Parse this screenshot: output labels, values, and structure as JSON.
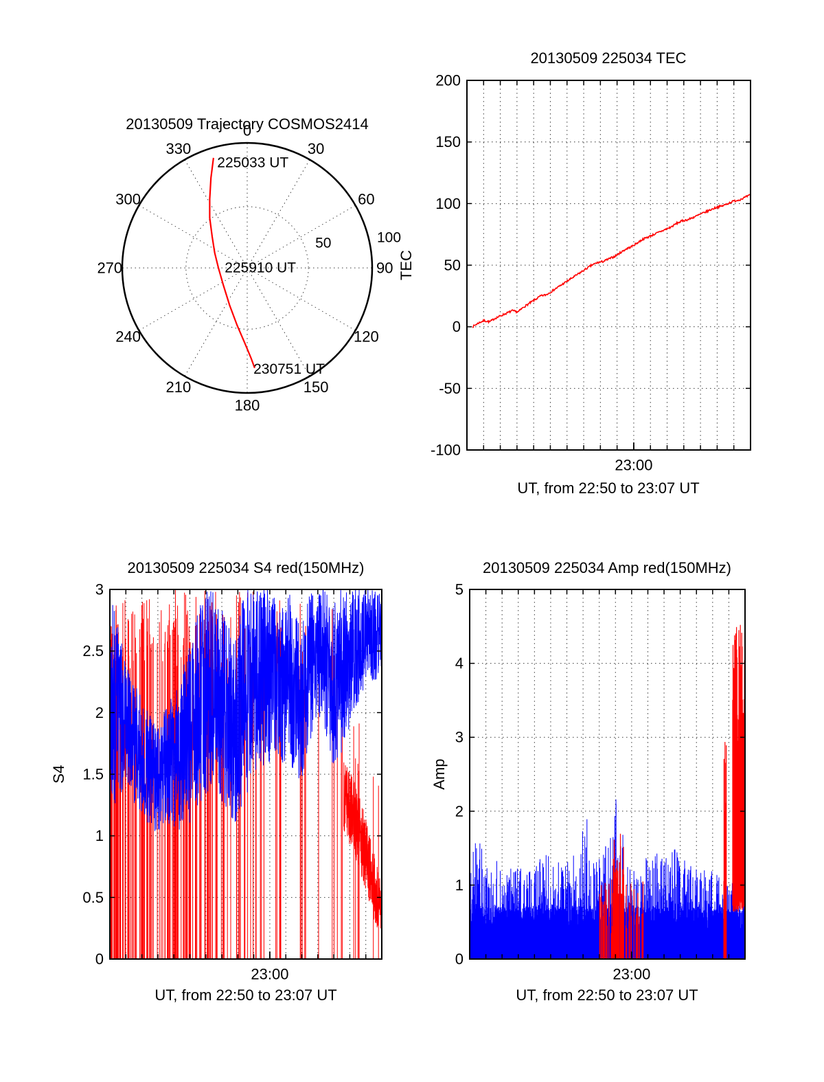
{
  "figure": {
    "background": "#ffffff"
  },
  "chart_data": {
    "trajectory": {
      "type": "polar-track",
      "title": "20130509 Trajectory COSMOS2414",
      "azimuth_tick_labels": [
        "0",
        "30",
        "60",
        "90",
        "120",
        "150",
        "180",
        "210",
        "240",
        "270",
        "300",
        "330"
      ],
      "radial_tick_labels": [
        {
          "label": "50",
          "az_deg": 72,
          "r": 0.64
        },
        {
          "label": "100",
          "az_deg": 78,
          "r": 1.16
        }
      ],
      "track_color": "#ff0000",
      "track_points_unit": [
        [
          -0.27,
          0.88
        ],
        [
          -0.29,
          0.72
        ],
        [
          -0.3,
          0.55
        ],
        [
          -0.3,
          0.4
        ],
        [
          -0.28,
          0.25
        ],
        [
          -0.26,
          0.12
        ],
        [
          -0.23,
          0.0
        ],
        [
          -0.19,
          -0.14
        ],
        [
          -0.14,
          -0.3
        ],
        [
          -0.08,
          -0.46
        ],
        [
          -0.02,
          -0.6
        ],
        [
          0.03,
          -0.72
        ],
        [
          0.06,
          -0.8
        ]
      ],
      "annotations": [
        {
          "label": "225033 UT",
          "x": -0.24,
          "y": 0.84
        },
        {
          "label": "225910 UT",
          "x": -0.18,
          "y": 0.0
        },
        {
          "label": "230751 UT",
          "x": 0.05,
          "y": -0.81
        }
      ]
    },
    "tec": {
      "type": "line",
      "title": "20130509 225034 TEC",
      "xlabel": "UT, from 22:50 to 23:07 UT",
      "ylabel": "TEC",
      "x_start": "22:50",
      "x_end": "23:07",
      "x_minutes": 17,
      "xticks": [
        {
          "pos": 0.5882,
          "label": "23:00"
        }
      ],
      "ylim": [
        -100,
        200
      ],
      "yticks": [
        -100,
        -50,
        0,
        50,
        100,
        150,
        200
      ],
      "line_color": "#ff0000",
      "points": [
        [
          0.02,
          0
        ],
        [
          0.04,
          3
        ],
        [
          0.06,
          5
        ],
        [
          0.08,
          4
        ],
        [
          0.1,
          7
        ],
        [
          0.12,
          9
        ],
        [
          0.14,
          11
        ],
        [
          0.16,
          13
        ],
        [
          0.18,
          12
        ],
        [
          0.2,
          16
        ],
        [
          0.22,
          19
        ],
        [
          0.24,
          22
        ],
        [
          0.26,
          25
        ],
        [
          0.28,
          26
        ],
        [
          0.3,
          29
        ],
        [
          0.32,
          32
        ],
        [
          0.34,
          35
        ],
        [
          0.36,
          38
        ],
        [
          0.38,
          41
        ],
        [
          0.4,
          44
        ],
        [
          0.42,
          47
        ],
        [
          0.44,
          50
        ],
        [
          0.46,
          52
        ],
        [
          0.48,
          53
        ],
        [
          0.5,
          55
        ],
        [
          0.52,
          57
        ],
        [
          0.54,
          60
        ],
        [
          0.56,
          63
        ],
        [
          0.58,
          65
        ],
        [
          0.6,
          68
        ],
        [
          0.62,
          71
        ],
        [
          0.64,
          73
        ],
        [
          0.66,
          75
        ],
        [
          0.68,
          77
        ],
        [
          0.7,
          79
        ],
        [
          0.72,
          81
        ],
        [
          0.74,
          84
        ],
        [
          0.76,
          86
        ],
        [
          0.78,
          87
        ],
        [
          0.8,
          89
        ],
        [
          0.82,
          91
        ],
        [
          0.84,
          93
        ],
        [
          0.86,
          95
        ],
        [
          0.88,
          97
        ],
        [
          0.9,
          98
        ],
        [
          0.92,
          100
        ],
        [
          0.94,
          102
        ],
        [
          0.96,
          103
        ],
        [
          0.98,
          105
        ],
        [
          1.0,
          107
        ]
      ]
    },
    "s4": {
      "type": "scintillation",
      "title": "20130509 225034 S4 red(150MHz)",
      "xlabel": "UT, from 22:50 to 23:07 UT",
      "ylabel": "S4",
      "x_start": "22:50",
      "x_end": "23:07",
      "x_minutes": 17,
      "xticks": [
        {
          "pos": 0.5882,
          "label": "23:00"
        }
      ],
      "ylim": [
        0,
        3
      ],
      "yticks": [
        0,
        0.5,
        1,
        1.5,
        2,
        2.5,
        3
      ],
      "series": [
        {
          "name": "red-150MHz-spikes",
          "color": "#ff0000",
          "style": "vlines",
          "samples": 900,
          "envelope": [
            [
              0,
              0.55,
              3
            ],
            [
              0.05,
              0.5,
              3
            ],
            [
              0.1,
              0.32,
              3
            ],
            [
              0.15,
              0.26,
              3
            ],
            [
              0.2,
              0.32,
              3
            ],
            [
              0.25,
              0.3,
              3
            ],
            [
              0.3,
              0.24,
              3
            ],
            [
              0.35,
              0.18,
              3
            ],
            [
              0.4,
              0.13,
              3
            ],
            [
              0.45,
              0.1,
              3
            ],
            [
              0.5,
              0.1,
              3
            ],
            [
              0.55,
              0.08,
              3
            ],
            [
              0.6,
              0.07,
              3
            ],
            [
              0.65,
              0.07,
              3
            ],
            [
              0.7,
              0.08,
              3
            ],
            [
              0.75,
              0.09,
              3
            ],
            [
              0.8,
              0.1,
              3
            ],
            [
              0.85,
              0.06,
              2.6
            ],
            [
              0.9,
              0.04,
              2.0
            ],
            [
              1.0,
              0.02,
              1.5
            ]
          ]
        },
        {
          "name": "blue-noise",
          "color": "#0000ff",
          "style": "noise-line",
          "samples": 1800,
          "t0": 0.0,
          "t1": 1.0,
          "envelope": [
            [
              0,
              1.2,
              3.0
            ],
            [
              0.03,
              1.3,
              2.7
            ],
            [
              0.06,
              1.4,
              2.4
            ],
            [
              0.1,
              1.2,
              2.2
            ],
            [
              0.14,
              1.1,
              2.0
            ],
            [
              0.18,
              1.0,
              1.9
            ],
            [
              0.22,
              1.1,
              2.1
            ],
            [
              0.26,
              1.0,
              2.3
            ],
            [
              0.3,
              1.1,
              2.6
            ],
            [
              0.34,
              1.3,
              3.0
            ],
            [
              0.38,
              1.4,
              3.0
            ],
            [
              0.42,
              1.2,
              2.8
            ],
            [
              0.46,
              1.1,
              2.7
            ],
            [
              0.5,
              1.3,
              3.0
            ],
            [
              0.54,
              1.5,
              3.0
            ],
            [
              0.58,
              1.6,
              3.0
            ],
            [
              0.62,
              1.4,
              2.9
            ],
            [
              0.66,
              1.6,
              3.0
            ],
            [
              0.7,
              1.4,
              2.7
            ],
            [
              0.74,
              1.8,
              3.0
            ],
            [
              0.78,
              2.0,
              3.0
            ],
            [
              0.82,
              1.5,
              3.0
            ],
            [
              0.86,
              1.7,
              3.0
            ],
            [
              0.9,
              2.0,
              3.0
            ],
            [
              0.94,
              2.2,
              3.0
            ],
            [
              1.0,
              2.3,
              3.0
            ]
          ]
        },
        {
          "name": "red-descending-tail",
          "color": "#ff0000",
          "style": "noise-line",
          "samples": 300,
          "t0": 0.86,
          "t1": 1.0,
          "envelope": [
            [
              0.86,
              1.0,
              1.6
            ],
            [
              0.89,
              0.9,
              1.5
            ],
            [
              0.92,
              0.7,
              1.3
            ],
            [
              0.95,
              0.5,
              1.1
            ],
            [
              0.97,
              0.3,
              0.9
            ],
            [
              1.0,
              0.12,
              0.6
            ]
          ]
        }
      ]
    },
    "amp": {
      "type": "scintillation",
      "title": "20130509 225034 Amp red(150MHz)",
      "xlabel": "UT, from 22:50 to 23:07 UT",
      "ylabel": "Amp",
      "x_start": "22:50",
      "x_end": "23:07",
      "x_minutes": 17,
      "xticks": [
        {
          "pos": 0.5882,
          "label": "23:00"
        }
      ],
      "ylim": [
        0,
        5
      ],
      "yticks": [
        0,
        1,
        2,
        3,
        4,
        5
      ],
      "series": [
        {
          "name": "blue-amplitude",
          "color": "#0000ff",
          "style": "fill-vlines",
          "samples": 1700,
          "spike_prob": 0.32,
          "envelope": [
            [
              0,
              0.68,
              1.95
            ],
            [
              0.03,
              0.66,
              1.6
            ],
            [
              0.06,
              0.66,
              1.55
            ],
            [
              0.1,
              0.66,
              1.35
            ],
            [
              0.15,
              0.64,
              1.25
            ],
            [
              0.2,
              0.64,
              1.25
            ],
            [
              0.25,
              0.65,
              1.35
            ],
            [
              0.3,
              0.66,
              1.45
            ],
            [
              0.35,
              0.65,
              1.3
            ],
            [
              0.4,
              0.66,
              1.5
            ],
            [
              0.42,
              0.66,
              2.55
            ],
            [
              0.44,
              0.66,
              1.35
            ],
            [
              0.5,
              0.66,
              1.55
            ],
            [
              0.54,
              0.66,
              2.5
            ],
            [
              0.57,
              0.66,
              1.4
            ],
            [
              0.62,
              0.66,
              1.35
            ],
            [
              0.66,
              0.66,
              1.5
            ],
            [
              0.7,
              0.66,
              1.4
            ],
            [
              0.75,
              0.66,
              1.5
            ],
            [
              0.8,
              0.65,
              1.3
            ],
            [
              0.85,
              0.65,
              1.3
            ],
            [
              0.9,
              0.64,
              1.15
            ],
            [
              0.95,
              0.63,
              1.05
            ],
            [
              1.0,
              0.62,
              1.0
            ]
          ]
        },
        {
          "name": "red-amplitude-bursts",
          "color": "#ff0000",
          "style": "vline-bursts",
          "bursts": [
            {
              "t0": 0.47,
              "t1": 0.52,
              "density": 0.2,
              "lo": 0,
              "hi": 1.1
            },
            {
              "t0": 0.52,
              "t1": 0.56,
              "density": 0.45,
              "lo": 0,
              "hi": 1.7
            },
            {
              "t0": 0.56,
              "t1": 0.63,
              "density": 0.18,
              "lo": 0,
              "hi": 1.2
            },
            {
              "t0": 0.923,
              "t1": 0.932,
              "density": 0.85,
              "lo": 0,
              "hi": 3.5
            },
            {
              "t0": 0.955,
              "t1": 1.0,
              "density": 0.97,
              "lo": 0.75,
              "hi": 4.6
            }
          ]
        }
      ]
    }
  }
}
